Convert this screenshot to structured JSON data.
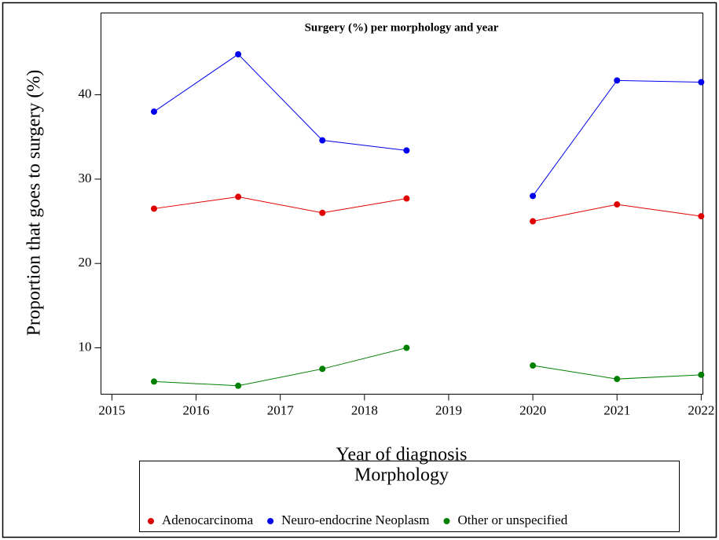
{
  "chart_data": {
    "type": "line",
    "title": "Surgery (%) per morphology and year",
    "x_label": "Year of diagnosis",
    "y_label": "Proportion that goes to surgery (%)",
    "x": [
      2015.5,
      2016.5,
      2017.5,
      2018.5,
      2019,
      2020,
      2021,
      2022
    ],
    "series": [
      {
        "name": "Adenocarcinoma",
        "color": "#e00000",
        "values": [
          26.5,
          27.9,
          26.0,
          27.7,
          null,
          25.0,
          27.0,
          25.6
        ]
      },
      {
        "name": "Neuro-endocrine Neoplasm",
        "color": "#0000ee",
        "values": [
          38.0,
          44.8,
          34.6,
          33.4,
          null,
          28.0,
          41.7,
          41.5
        ]
      },
      {
        "name": "Other or unspecified",
        "color": "#008000",
        "values": [
          6.0,
          5.5,
          7.5,
          10.0,
          null,
          7.9,
          6.3,
          6.8
        ]
      }
    ],
    "xlim": [
      2014.87,
      2022.02
    ],
    "ylim": [
      4.5,
      49.7
    ],
    "xticks": [
      2015,
      2016,
      2017,
      2018,
      2019,
      2020,
      2021,
      2022
    ],
    "yticks": [
      10,
      20,
      30,
      40
    ],
    "legend_title": "Morphology",
    "legend_position": "bottom"
  }
}
